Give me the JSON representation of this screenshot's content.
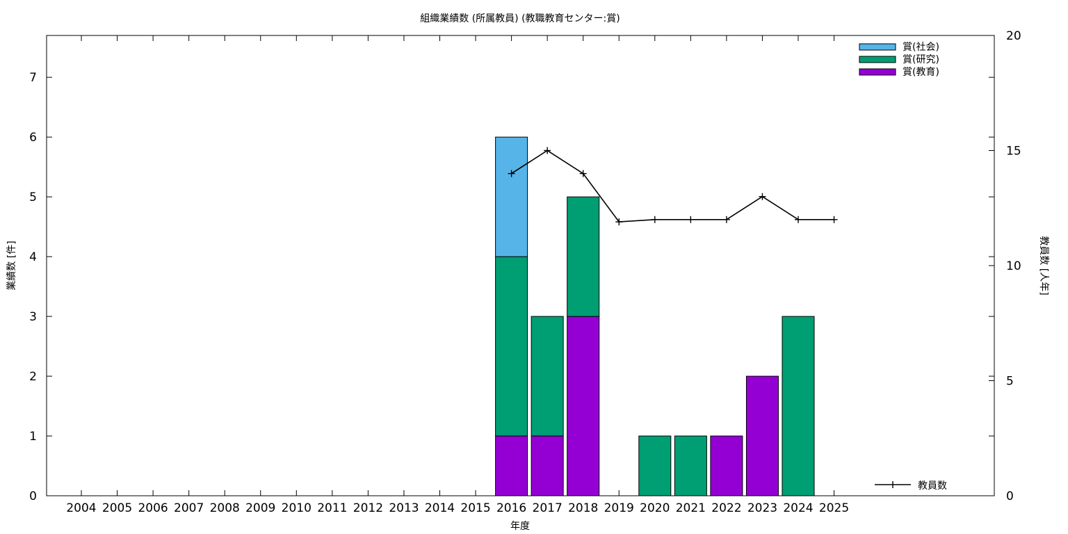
{
  "chart_data": {
    "type": "bar",
    "title": "組織業績数 (所属教員) (教職教育センター:賞)",
    "xlabel": "年度",
    "ylabel": "業績数 [件]",
    "y2label": "教員数 [人年]",
    "categories": [
      "2004",
      "2005",
      "2006",
      "2007",
      "2008",
      "2009",
      "2010",
      "2011",
      "2012",
      "2013",
      "2014",
      "2015",
      "2016",
      "2017",
      "2018",
      "2019",
      "2020",
      "2021",
      "2022",
      "2023",
      "2024",
      "2025"
    ],
    "ylim": [
      0,
      7.7
    ],
    "yticks": [
      0,
      1,
      2,
      3,
      4,
      5,
      6,
      7
    ],
    "y2lim": [
      0,
      20
    ],
    "y2ticks": [
      0,
      5,
      10,
      15,
      20
    ],
    "stacked": true,
    "series": [
      {
        "name": "賞(教育)",
        "color": "#9400d3",
        "values": [
          0,
          0,
          0,
          0,
          0,
          0,
          0,
          0,
          0,
          0,
          0,
          0,
          1,
          1,
          3,
          0,
          0,
          0,
          1,
          2,
          0,
          0
        ]
      },
      {
        "name": "賞(研究)",
        "color": "#009e73",
        "values": [
          0,
          0,
          0,
          0,
          0,
          0,
          0,
          0,
          0,
          0,
          0,
          0,
          3,
          2,
          2,
          0,
          1,
          1,
          0,
          0,
          3,
          0
        ]
      },
      {
        "name": "賞(社会)",
        "color": "#56b4e9",
        "values": [
          0,
          0,
          0,
          0,
          0,
          0,
          0,
          0,
          0,
          0,
          0,
          0,
          2,
          0,
          0,
          0,
          0,
          0,
          0,
          0,
          0,
          0
        ]
      }
    ],
    "line_series": {
      "name": "教員数",
      "axis": "y2",
      "color": "#000000",
      "values": [
        null,
        null,
        null,
        null,
        null,
        null,
        null,
        null,
        null,
        null,
        null,
        null,
        14,
        15,
        14,
        11.9,
        12,
        12,
        12,
        13,
        12,
        12
      ]
    },
    "legend_bars_position": "top-right",
    "legend_line_position": "bottom-right",
    "grid": false
  }
}
